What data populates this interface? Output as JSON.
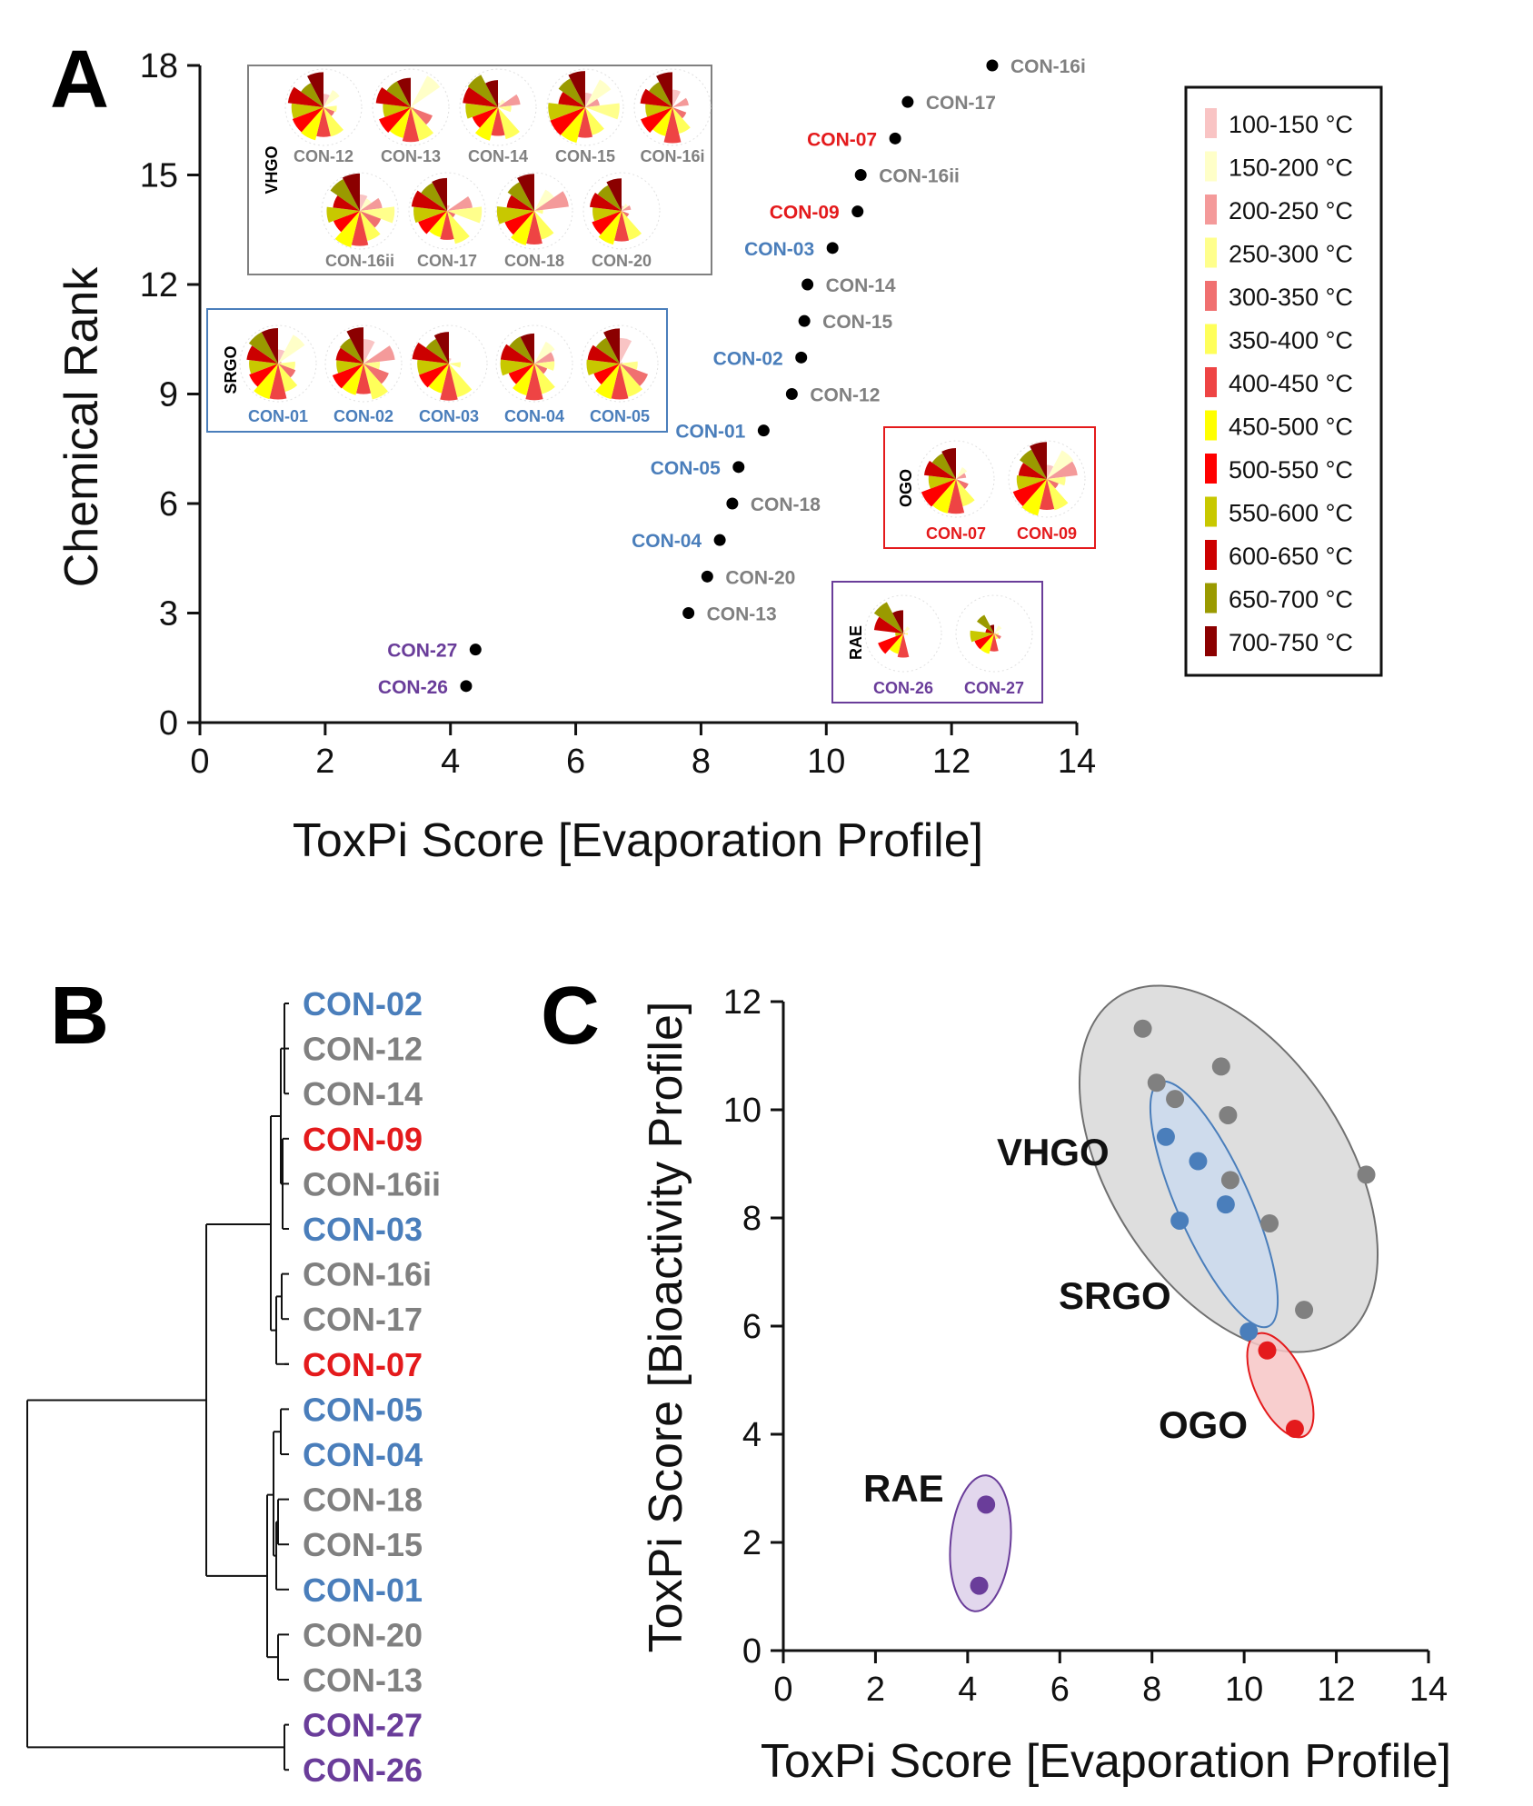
{
  "colors": {
    "VHGO": "#808080",
    "SRGO": "#4a7ebb",
    "OGO": "#e41a1c",
    "RAE": "#6a3d9a"
  },
  "panel_a": {
    "letter": "A",
    "chart_data": {
      "type": "scatter",
      "xlabel": "ToxPi Score [Evaporation Profile]",
      "ylabel": "Chemical Rank",
      "xlim": [
        0,
        14
      ],
      "ylim": [
        0,
        18
      ],
      "xticks": [
        "0",
        "2",
        "4",
        "6",
        "8",
        "10",
        "12",
        "14"
      ],
      "yticks": [
        "0",
        "3",
        "6",
        "9",
        "12",
        "15",
        "18"
      ],
      "points": [
        {
          "label": "CON-26",
          "group": "RAE",
          "x": 4.25,
          "y": 1,
          "side": "left"
        },
        {
          "label": "CON-27",
          "group": "RAE",
          "x": 4.4,
          "y": 2,
          "side": "left"
        },
        {
          "label": "CON-13",
          "group": "VHGO",
          "x": 7.8,
          "y": 3,
          "side": "right"
        },
        {
          "label": "CON-20",
          "group": "VHGO",
          "x": 8.1,
          "y": 4,
          "side": "right"
        },
        {
          "label": "CON-04",
          "group": "SRGO",
          "x": 8.3,
          "y": 5,
          "side": "left"
        },
        {
          "label": "CON-18",
          "group": "VHGO",
          "x": 8.5,
          "y": 6,
          "side": "right"
        },
        {
          "label": "CON-05",
          "group": "SRGO",
          "x": 8.6,
          "y": 7,
          "side": "left"
        },
        {
          "label": "CON-01",
          "group": "SRGO",
          "x": 9.0,
          "y": 8,
          "side": "left"
        },
        {
          "label": "CON-12",
          "group": "VHGO",
          "x": 9.45,
          "y": 9,
          "side": "right"
        },
        {
          "label": "CON-02",
          "group": "SRGO",
          "x": 9.6,
          "y": 10,
          "side": "left"
        },
        {
          "label": "CON-15",
          "group": "VHGO",
          "x": 9.65,
          "y": 11,
          "side": "right"
        },
        {
          "label": "CON-14",
          "group": "VHGO",
          "x": 9.7,
          "y": 12,
          "side": "right"
        },
        {
          "label": "CON-03",
          "group": "SRGO",
          "x": 10.1,
          "y": 13,
          "side": "left"
        },
        {
          "label": "CON-09",
          "group": "OGO",
          "x": 10.5,
          "y": 14,
          "side": "left"
        },
        {
          "label": "CON-16ii",
          "group": "VHGO",
          "x": 10.55,
          "y": 15,
          "side": "right"
        },
        {
          "label": "CON-07",
          "group": "OGO",
          "x": 11.1,
          "y": 16,
          "side": "left"
        },
        {
          "label": "CON-17",
          "group": "VHGO",
          "x": 11.3,
          "y": 17,
          "side": "right"
        },
        {
          "label": "CON-16i",
          "group": "VHGO",
          "x": 12.65,
          "y": 18,
          "side": "right"
        }
      ]
    },
    "inset_groups": [
      {
        "name": "VHGO",
        "rows": [
          [
            "CON-12",
            "CON-13",
            "CON-14",
            "CON-15",
            "CON-16i"
          ],
          [
            "CON-16ii",
            "CON-17",
            "CON-18",
            "CON-20"
          ]
        ]
      },
      {
        "name": "SRGO",
        "rows": [
          [
            "CON-01",
            "CON-02",
            "CON-03",
            "CON-04",
            "CON-05"
          ]
        ]
      },
      {
        "name": "OGO",
        "rows": [
          [
            "CON-07",
            "CON-09"
          ]
        ]
      },
      {
        "name": "RAE",
        "rows": [
          [
            "CON-26",
            "CON-27"
          ]
        ]
      }
    ],
    "legend": [
      {
        "label": "100-150 °C",
        "color": "#f9c4c4"
      },
      {
        "label": "150-200 °C",
        "color": "#ffffc8"
      },
      {
        "label": "200-250 °C",
        "color": "#f49a9a"
      },
      {
        "label": "250-300 °C",
        "color": "#ffff8c"
      },
      {
        "label": "300-350 °C",
        "color": "#f07070"
      },
      {
        "label": "350-400 °C",
        "color": "#ffff5a"
      },
      {
        "label": "400-450 °C",
        "color": "#ee4444"
      },
      {
        "label": "450-500 °C",
        "color": "#ffff00"
      },
      {
        "label": "500-550 °C",
        "color": "#ff0000"
      },
      {
        "label": "550-600 °C",
        "color": "#c8c800"
      },
      {
        "label": "600-650 °C",
        "color": "#cc0000"
      },
      {
        "label": "650-700 °C",
        "color": "#9a9a00"
      },
      {
        "label": "700-750 °C",
        "color": "#8b0000"
      }
    ]
  },
  "panel_b": {
    "letter": "B",
    "leaves": [
      {
        "label": "CON-02",
        "group": "SRGO"
      },
      {
        "label": "CON-12",
        "group": "VHGO"
      },
      {
        "label": "CON-14",
        "group": "VHGO"
      },
      {
        "label": "CON-09",
        "group": "OGO"
      },
      {
        "label": "CON-16ii",
        "group": "VHGO"
      },
      {
        "label": "CON-03",
        "group": "SRGO"
      },
      {
        "label": "CON-16i",
        "group": "VHGO"
      },
      {
        "label": "CON-17",
        "group": "VHGO"
      },
      {
        "label": "CON-07",
        "group": "OGO"
      },
      {
        "label": "CON-05",
        "group": "SRGO"
      },
      {
        "label": "CON-04",
        "group": "SRGO"
      },
      {
        "label": "CON-18",
        "group": "VHGO"
      },
      {
        "label": "CON-15",
        "group": "VHGO"
      },
      {
        "label": "CON-01",
        "group": "SRGO"
      },
      {
        "label": "CON-20",
        "group": "VHGO"
      },
      {
        "label": "CON-13",
        "group": "VHGO"
      },
      {
        "label": "CON-27",
        "group": "RAE"
      },
      {
        "label": "CON-26",
        "group": "RAE"
      }
    ]
  },
  "panel_c": {
    "letter": "C",
    "chart_data": {
      "type": "scatter",
      "xlabel": "ToxPi Score [Evaporation Profile]",
      "ylabel": "ToxPi Score [Bioactivity Profile]",
      "xlim": [
        0,
        14
      ],
      "ylim": [
        0,
        12
      ],
      "xticks": [
        "0",
        "2",
        "4",
        "6",
        "8",
        "10",
        "12",
        "14"
      ],
      "yticks": [
        "0",
        "2",
        "4",
        "6",
        "8",
        "10",
        "12"
      ],
      "group_labels": [
        "VHGO",
        "SRGO",
        "OGO",
        "RAE"
      ],
      "series": [
        {
          "name": "VHGO",
          "points": [
            [
              7.8,
              11.5
            ],
            [
              8.1,
              10.5
            ],
            [
              8.5,
              10.2
            ],
            [
              9.5,
              10.8
            ],
            [
              9.65,
              9.9
            ],
            [
              9.7,
              8.7
            ],
            [
              10.55,
              7.9
            ],
            [
              11.3,
              6.3
            ],
            [
              12.65,
              8.8
            ]
          ]
        },
        {
          "name": "SRGO",
          "points": [
            [
              8.3,
              9.5
            ],
            [
              9.0,
              9.05
            ],
            [
              8.6,
              7.95
            ],
            [
              9.6,
              8.25
            ],
            [
              10.1,
              5.9
            ]
          ]
        },
        {
          "name": "OGO",
          "points": [
            [
              10.5,
              5.55
            ],
            [
              11.1,
              4.1
            ]
          ]
        },
        {
          "name": "RAE",
          "points": [
            [
              4.4,
              2.7
            ],
            [
              4.25,
              1.2
            ]
          ]
        }
      ]
    }
  }
}
